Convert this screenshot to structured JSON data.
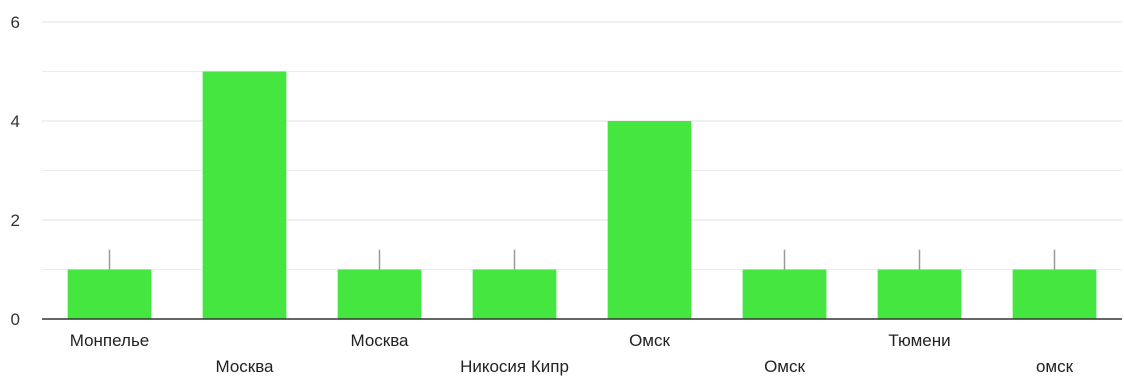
{
  "chart_data": {
    "type": "bar",
    "title": "",
    "xlabel": "",
    "ylabel": "",
    "ylim": [
      0,
      6
    ],
    "yticks": [
      0,
      2,
      4,
      6
    ],
    "grid": true,
    "categories": [
      "Монпелье",
      "Москва",
      "Москва",
      "Никосия Кипр",
      "Омск",
      "Омск",
      "Тюмени",
      "омск"
    ],
    "values": [
      1,
      5,
      1,
      1,
      4,
      1,
      1,
      1
    ],
    "bar_color": "#44e63f",
    "grid_color": "#e6e6e6",
    "axis_color": "#333333",
    "whisker_color": "#999999"
  }
}
